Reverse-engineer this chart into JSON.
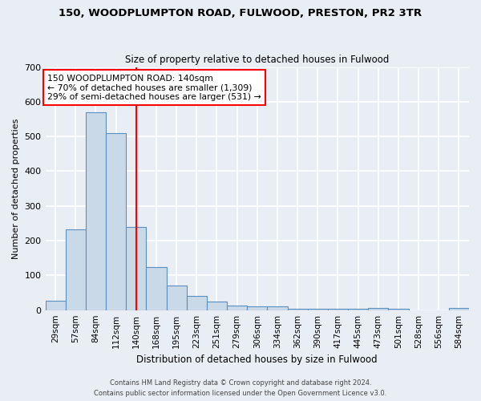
{
  "title_line1": "150, WOODPLUMPTON ROAD, FULWOOD, PRESTON, PR2 3TR",
  "title_line2": "Size of property relative to detached houses in Fulwood",
  "xlabel": "Distribution of detached houses by size in Fulwood",
  "ylabel": "Number of detached properties",
  "categories": [
    "29sqm",
    "57sqm",
    "84sqm",
    "112sqm",
    "140sqm",
    "168sqm",
    "195sqm",
    "223sqm",
    "251sqm",
    "279sqm",
    "306sqm",
    "334sqm",
    "362sqm",
    "390sqm",
    "417sqm",
    "445sqm",
    "473sqm",
    "501sqm",
    "528sqm",
    "556sqm",
    "584sqm"
  ],
  "values": [
    27,
    232,
    570,
    510,
    240,
    123,
    70,
    40,
    25,
    14,
    10,
    10,
    5,
    5,
    5,
    5,
    7,
    3,
    0,
    0,
    7
  ],
  "bar_color": "#c9d9e8",
  "bar_edge_color": "#5a8fc0",
  "highlight_index": 4,
  "annotation_text": "150 WOODPLUMPTON ROAD: 140sqm\n← 70% of detached houses are smaller (1,309)\n29% of semi-detached houses are larger (531) →",
  "annotation_box_color": "white",
  "annotation_box_edge": "red",
  "vline_color": "red",
  "ylim": [
    0,
    700
  ],
  "yticks": [
    0,
    100,
    200,
    300,
    400,
    500,
    600,
    700
  ],
  "background_color": "#e8eef4",
  "grid_color": "white",
  "footer_line1": "Contains HM Land Registry data © Crown copyright and database right 2024.",
  "footer_line2": "Contains public sector information licensed under the Open Government Licence v3.0."
}
